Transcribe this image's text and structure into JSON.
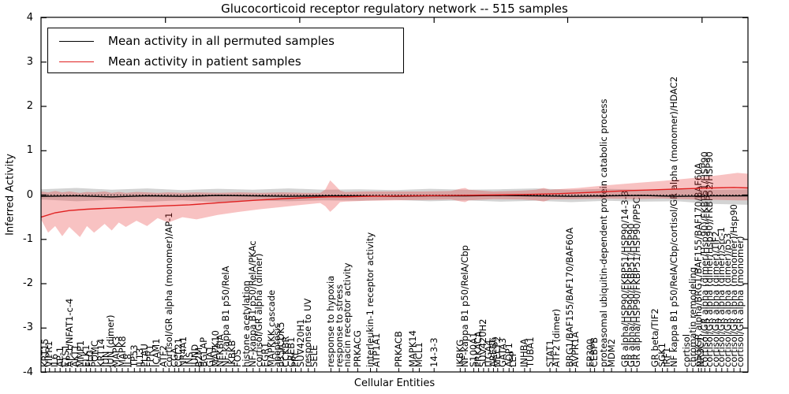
{
  "title": "Glucocorticoid receptor regulatory network -- 515 samples",
  "axes": {
    "ylabel": "Inferred Activity",
    "xlabel": "Cellular Entities",
    "yticks": [
      4,
      3,
      2,
      1,
      0,
      -1,
      -2,
      -3,
      -4
    ],
    "ylim": [
      -4,
      4
    ]
  },
  "legend": {
    "entries": [
      {
        "label": "Mean activity in all permuted samples",
        "color": "#000000"
      },
      {
        "label": "Mean activity in patient samples",
        "color": "#e02020"
      }
    ]
  },
  "chart_data": {
    "type": "line",
    "title": "Glucocorticoid receptor regulatory network -- 515 samples",
    "xlabel": "Cellular Entities",
    "ylabel": "Inferred Activity",
    "ylim": [
      -4,
      4
    ],
    "grid": false,
    "legend_position": "upper left",
    "zero_line": true,
    "colors": {
      "permuted_line": "#000000",
      "patient_line": "#e02020",
      "permuted_band": "rgba(110,110,110,0.30)",
      "patient_band": "rgba(228,30,30,0.27)"
    },
    "series": [
      {
        "name": "Mean activity in all permuted samples",
        "x": [
          0,
          0.05,
          0.1,
          0.15,
          0.2,
          0.25,
          0.3,
          0.35,
          0.4,
          0.45,
          0.5,
          0.55,
          0.6,
          0.65,
          0.7,
          0.75,
          0.8,
          0.85,
          0.9,
          0.95,
          1
        ],
        "y": [
          -0.03,
          -0.02,
          -0.04,
          -0.02,
          -0.03,
          -0.01,
          -0.02,
          -0.03,
          -0.02,
          -0.02,
          -0.03,
          -0.02,
          -0.02,
          -0.01,
          -0.02,
          -0.03,
          -0.02,
          -0.01,
          -0.03,
          -0.02,
          -0.02
        ]
      },
      {
        "name": "Mean activity in patient samples",
        "x": [
          0,
          0.02,
          0.04,
          0.065,
          0.09,
          0.12,
          0.165,
          0.21,
          0.255,
          0.3,
          0.345,
          0.39,
          0.409,
          0.43,
          0.46,
          0.52,
          0.58,
          0.63,
          0.68,
          0.73,
          0.78,
          0.83,
          0.87,
          0.91,
          0.95,
          0.98,
          1
        ],
        "y": [
          -0.5,
          -0.4,
          -0.35,
          -0.32,
          -0.3,
          -0.28,
          -0.25,
          -0.22,
          -0.17,
          -0.12,
          -0.08,
          -0.05,
          -0.04,
          -0.04,
          -0.03,
          -0.02,
          -0.01,
          0,
          0.01,
          0.03,
          0.06,
          0.1,
          0.12,
          0.14,
          0.16,
          0.17,
          0.16
        ]
      }
    ],
    "bands": [
      {
        "name": "permuted-confidence-band",
        "x": [
          0,
          0.05,
          0.1,
          0.15,
          0.2,
          0.25,
          0.3,
          0.35,
          0.4,
          0.45,
          0.5,
          0.55,
          0.6,
          0.65,
          0.7,
          0.75,
          0.8,
          0.85,
          0.9,
          0.95,
          1
        ],
        "upper": [
          0.13,
          0.16,
          0.12,
          0.15,
          0.11,
          0.14,
          0.12,
          0.15,
          0.12,
          0.13,
          0.11,
          0.14,
          0.12,
          0.13,
          0.15,
          0.12,
          0.14,
          0.12,
          0.13,
          0.12,
          0.13
        ],
        "lower": [
          -0.1,
          -0.14,
          -0.11,
          -0.15,
          -0.12,
          -0.16,
          -0.12,
          -0.14,
          -0.12,
          -0.13,
          -0.11,
          -0.14,
          -0.12,
          -0.15,
          -0.13,
          -0.16,
          -0.13,
          -0.15,
          -0.14,
          -0.2,
          -0.22
        ]
      },
      {
        "name": "patient-confidence-band",
        "x": [
          0,
          0.01,
          0.02,
          0.03,
          0.04,
          0.055,
          0.065,
          0.075,
          0.09,
          0.1,
          0.11,
          0.12,
          0.135,
          0.15,
          0.165,
          0.18,
          0.2,
          0.22,
          0.25,
          0.28,
          0.31,
          0.34,
          0.37,
          0.395,
          0.402,
          0.409,
          0.416,
          0.423,
          0.43,
          0.46,
          0.5,
          0.54,
          0.58,
          0.595,
          0.6,
          0.605,
          0.64,
          0.68,
          0.7,
          0.711,
          0.72,
          0.76,
          0.8,
          0.84,
          0.88,
          0.92,
          0.96,
          0.985,
          1
        ],
        "upper": [
          0.08,
          0.06,
          0.09,
          0.06,
          0.08,
          0.05,
          0.07,
          0.06,
          0.08,
          0.05,
          0.07,
          0.05,
          0.07,
          0.06,
          0.05,
          0.06,
          0.05,
          0.06,
          0.05,
          0.06,
          0.05,
          0.06,
          0.05,
          0.05,
          0.12,
          0.33,
          0.22,
          0.1,
          0.07,
          0.08,
          0.08,
          0.08,
          0.09,
          0.15,
          0.16,
          0.12,
          0.08,
          0.1,
          0.12,
          0.16,
          0.12,
          0.16,
          0.22,
          0.27,
          0.32,
          0.38,
          0.45,
          0.5,
          0.48
        ],
        "lower": [
          -0.55,
          -0.85,
          -0.7,
          -0.93,
          -0.72,
          -0.95,
          -0.7,
          -0.85,
          -0.65,
          -0.8,
          -0.62,
          -0.72,
          -0.58,
          -0.7,
          -0.52,
          -0.62,
          -0.5,
          -0.55,
          -0.45,
          -0.38,
          -0.32,
          -0.27,
          -0.22,
          -0.18,
          -0.25,
          -0.38,
          -0.28,
          -0.16,
          -0.15,
          -0.13,
          -0.12,
          -0.11,
          -0.1,
          -0.15,
          -0.16,
          -0.12,
          -0.09,
          -0.1,
          -0.12,
          -0.15,
          -0.1,
          -0.09,
          -0.08,
          -0.09,
          -0.08,
          -0.1,
          -0.11,
          -0.12,
          -0.12
        ]
      }
    ],
    "top_ticks": [
      0.176,
      0.366,
      0.556,
      0.745,
      0.935
    ],
    "entities": [
      [
        0.006,
        "KRT15"
      ],
      [
        0.012,
        "VIPR1"
      ],
      [
        0.02,
        "IL6"
      ],
      [
        0.027,
        "AP-1"
      ],
      [
        0.035,
        "ETS1"
      ],
      [
        0.041,
        "AP-1/NFAT1-c-4"
      ],
      [
        0.049,
        "AKT1"
      ],
      [
        0.056,
        "MMP1"
      ],
      [
        0.064,
        "ELK1"
      ],
      [
        0.07,
        "FLG"
      ],
      [
        0.077,
        "POMC"
      ],
      [
        0.085,
        "KRT14"
      ],
      [
        0.092,
        "JUN"
      ],
      [
        0.099,
        "JUN (dimer)"
      ],
      [
        0.107,
        "MAPK3"
      ],
      [
        0.115,
        "MAPK8"
      ],
      [
        0.123,
        "IL8"
      ],
      [
        0.132,
        "TP53"
      ],
      [
        0.14,
        "IL13"
      ],
      [
        0.147,
        "PLAU"
      ],
      [
        0.155,
        "FPR1"
      ],
      [
        0.163,
        "ICAM1"
      ],
      [
        0.173,
        "ATF2"
      ],
      [
        0.181,
        "cortisol/GR alpha (monomer)/AP-1"
      ],
      [
        0.189,
        "CGA"
      ],
      [
        0.195,
        "CCL21"
      ],
      [
        0.202,
        "NR4A1"
      ],
      [
        0.21,
        "INS"
      ],
      [
        0.218,
        "JUND"
      ],
      [
        0.224,
        "B2M"
      ],
      [
        0.231,
        "BGLAP"
      ],
      [
        0.239,
        "GJA1"
      ],
      [
        0.247,
        "MAPK10"
      ],
      [
        0.254,
        "NFKBIA"
      ],
      [
        0.262,
        "NF-kappa B1 p50/RelA"
      ],
      [
        0.271,
        "IKBKB"
      ],
      [
        0.279,
        "FOS"
      ],
      [
        0.291,
        "histone acetylation"
      ],
      [
        0.3,
        "NF-kappa B1 p50/RelA/PKAc"
      ],
      [
        0.309,
        "cortisol/GR alpha (dimer)"
      ],
      [
        0.318,
        "EGR1"
      ],
      [
        0.326,
        "MAPKKK cascade"
      ],
      [
        0.334,
        "apoptosis"
      ],
      [
        0.34,
        "p35/CDK5"
      ],
      [
        0.347,
        "CCKBR"
      ],
      [
        0.354,
        "CREB1"
      ],
      [
        0.36,
        "PRL"
      ],
      [
        0.368,
        "SUV420H1"
      ],
      [
        0.378,
        "response to UV"
      ],
      [
        0.387,
        "SELE"
      ],
      [
        0.41,
        "response to hypoxia"
      ],
      [
        0.422,
        "response to stress"
      ],
      [
        0.434,
        "niacin receptor activity"
      ],
      [
        0.448,
        "PRKACG"
      ],
      [
        0.466,
        "interleukin-1 receptor activity"
      ],
      [
        0.475,
        "ATP1A1"
      ],
      [
        0.506,
        "PRKACB"
      ],
      [
        0.526,
        "MAPK14"
      ],
      [
        0.535,
        "MCL1"
      ],
      [
        0.556,
        "14-3-3"
      ],
      [
        0.593,
        "IKBKG"
      ],
      [
        0.6,
        "NF-kappa B1 p50/RelA/Cbp"
      ],
      [
        0.612,
        "S100A1"
      ],
      [
        0.619,
        "PRKACA"
      ],
      [
        0.626,
        "SUV420H2"
      ],
      [
        0.633,
        "ITGA4"
      ],
      [
        0.64,
        "AREB6"
      ],
      [
        0.646,
        "MECP2"
      ],
      [
        0.654,
        "GATA3"
      ],
      [
        0.662,
        "AQP1"
      ],
      [
        0.668,
        "LEP"
      ],
      [
        0.684,
        "INHBA"
      ],
      [
        0.692,
        "TUBA1"
      ],
      [
        0.72,
        "STAT1"
      ],
      [
        0.729,
        "ATF2 (dimer)"
      ],
      [
        0.748,
        "BRG1/BAF155/BAF170/BAF60A"
      ],
      [
        0.756,
        "AVPR1A"
      ],
      [
        0.777,
        "EP300"
      ],
      [
        0.783,
        "CEBPB"
      ],
      [
        0.796,
        "proteasomal ubiquitin-dependent protein catabolic process"
      ],
      [
        0.807,
        "MDM2"
      ],
      [
        0.827,
        "GR alpha/HSP90/FKBP51/HSP90/14-3-3"
      ],
      [
        0.835,
        "GR alpha/HSP90/FKBP51/HSP90"
      ],
      [
        0.843,
        "GR alpha/HSP90/FKBP51/HSP90/PP5C"
      ],
      [
        0.869,
        "GR beta/TIF2"
      ],
      [
        0.879,
        "SGK1"
      ],
      [
        0.886,
        "IRF1"
      ],
      [
        0.896,
        "NF kappa B1 p50/RelA/Cbp/cortisol/GR alpha (monomer)/HDAC2"
      ],
      [
        0.914,
        "cortisol"
      ],
      [
        0.922,
        "chromatin remodeling"
      ],
      [
        0.93,
        "p50/GR alpha/BRG1/BAF155/BAF170/BAF60A"
      ],
      [
        0.934,
        "NR3C1"
      ],
      [
        0.939,
        "cortisol/GR alpha (dimer/Hsp90)/FKBP51/HSP90"
      ],
      [
        0.946,
        "cortisol/GR alpha (dimer/Hsp90)/FKBP52/HSP90"
      ],
      [
        0.955,
        "cortisol/GR alpha (dimer)/TIF2"
      ],
      [
        0.963,
        "cortisol/GR alpha (dimer)/Src-1"
      ],
      [
        0.971,
        "cortisol/GR alpha (dimer)/p53"
      ],
      [
        0.98,
        "cortisol/GR alpha (monomer)/Hsp90"
      ],
      [
        0.989,
        "cortisol/GR alpha (monomer)"
      ]
    ]
  }
}
